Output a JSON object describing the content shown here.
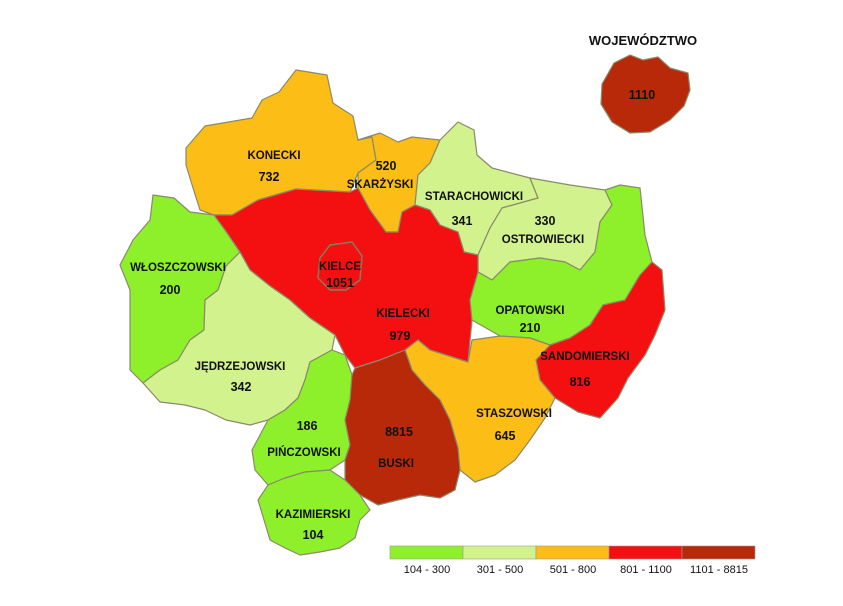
{
  "title": "WOJEWÓDZTWO",
  "voivodeship_value": "1110",
  "colors": {
    "c1": "#8ef02a",
    "c2": "#d2f28e",
    "c3": "#fbbd16",
    "c4": "#f41010",
    "c5": "#b8290a"
  },
  "legend": [
    {
      "range": "104 - 300",
      "color": "#8ef02a"
    },
    {
      "range": "301 - 500",
      "color": "#d2f28e"
    },
    {
      "range": "501 - 800",
      "color": "#fbbd16"
    },
    {
      "range": "801 - 1100",
      "color": "#f41010"
    },
    {
      "range": "1101 - 8815",
      "color": "#b8290a"
    }
  ],
  "counties": {
    "konecki": {
      "name": "KONECKI",
      "value": "732",
      "class": "501 - 800"
    },
    "skarzyski": {
      "name": "SKARŻYSKI",
      "value": "520",
      "class": "501 - 800"
    },
    "starachowicki": {
      "name": "STARACHOWICKI",
      "value": "341",
      "class": "301 - 500"
    },
    "ostrowiecki": {
      "name": "OSTROWIECKI",
      "value": "330",
      "class": "301 - 500"
    },
    "wloszczowski": {
      "name": "WŁOSZCZOWSKI",
      "value": "200",
      "class": "104 - 300"
    },
    "kielce": {
      "name": "KIELCE",
      "value": "1051",
      "class": "801 - 1100"
    },
    "kielecki": {
      "name": "KIELECKI",
      "value": "979",
      "class": "801 - 1100"
    },
    "opatowski": {
      "name": "OPATOWSKI",
      "value": "210",
      "class": "104 - 300"
    },
    "sandomierski": {
      "name": "SANDOMIERSKI",
      "value": "816",
      "class": "801 - 1100"
    },
    "jedrzejowski": {
      "name": "JĘDRZEJOWSKI",
      "value": "342",
      "class": "301 - 500"
    },
    "staszowski": {
      "name": "STASZOWSKI",
      "value": "645",
      "class": "501 - 800"
    },
    "pinczowski": {
      "name": "PIŃCZOWSKI",
      "value": "186",
      "class": "104 - 300"
    },
    "buski": {
      "name": "BUSKI",
      "value": "8815",
      "class": "1101 - 8815"
    },
    "kazimierski": {
      "name": "KAZIMIERSKI",
      "value": "104",
      "class": "104 - 300"
    }
  }
}
